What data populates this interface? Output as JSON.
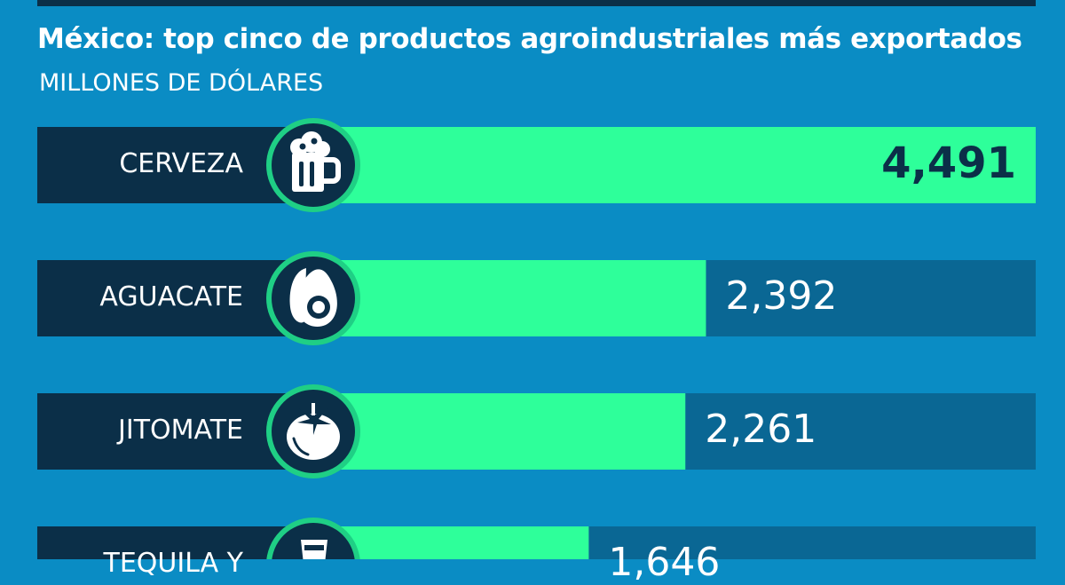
{
  "chart_data": {
    "type": "bar",
    "title": "México: top cinco de productos agroindustriales más exportados",
    "subtitle": "MILLONES DE DÓLARES",
    "categories": [
      "CERVEZA",
      "AGUACATE",
      "JITOMATE",
      "TEQUILA Y"
    ],
    "icons": [
      "beer-mug-icon",
      "avocado-icon",
      "tomato-icon",
      "tequila-glass-icon"
    ],
    "values": [
      4491,
      2392,
      2261,
      1646
    ],
    "value_labels": [
      "4,491",
      "2,392",
      "2,261",
      "1,646"
    ],
    "orientation": "horizontal",
    "grid": false,
    "legend": "none"
  },
  "colors": {
    "background": "#0a8cc4",
    "track": "#0a6794",
    "label_panel": "#0b2f48",
    "bar": "#2eff9a",
    "icon_circle": "#0b2f48",
    "icon_ring": "#1fcf85"
  }
}
